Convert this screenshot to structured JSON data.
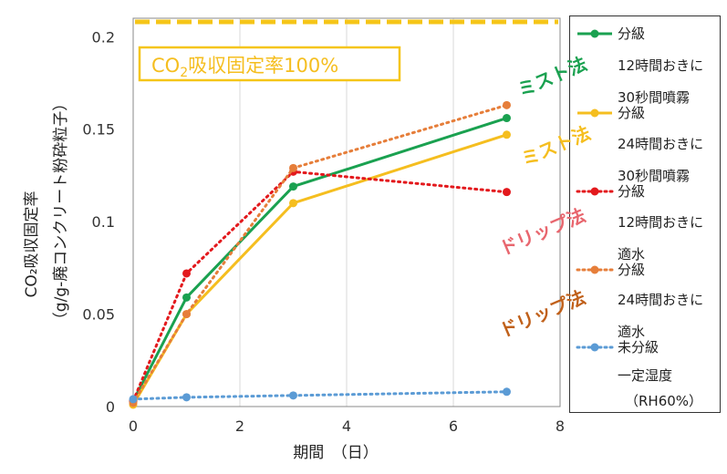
{
  "chart_data": {
    "type": "line",
    "xlabel": "期間　（日）",
    "ylabel_line1": "CO₂吸収固定率",
    "ylabel_line2": "（g/g-廃コンクリート粉砕粒子）",
    "xlim": [
      0,
      8
    ],
    "ylim": [
      0,
      0.21
    ],
    "x_ticks": [
      0,
      2,
      4,
      6,
      8
    ],
    "x_tick_labels": [
      "0",
      "2",
      "4",
      "6",
      "8"
    ],
    "y_ticks": [
      0,
      0.05,
      0.1,
      0.15,
      0.2
    ],
    "y_tick_labels": [
      "0",
      "0.05",
      "0.1",
      "0.15",
      "0.2"
    ],
    "grid": "vertical",
    "reference_line": {
      "y": 0.208,
      "label_pre": "CO",
      "label_sub": "2",
      "label_post": "吸収固定率100%",
      "color": "#F5C518"
    },
    "series": [
      {
        "name": "分級",
        "desc": [
          "12時間おきに",
          "30秒間噴霧"
        ],
        "color": "#1AA150",
        "style": "solid",
        "x": [
          0,
          1,
          3,
          7
        ],
        "y": [
          0.003,
          0.059,
          0.119,
          0.156
        ]
      },
      {
        "name": "分級",
        "desc": [
          "24時間おきに",
          "30秒間噴霧"
        ],
        "color": "#F5BE1F",
        "style": "solid",
        "x": [
          0,
          1,
          3,
          7
        ],
        "y": [
          0.001,
          0.05,
          0.11,
          0.147
        ]
      },
      {
        "name": "分級",
        "desc": [
          "12時間おきに",
          "適水"
        ],
        "color": "#E3191D",
        "style": "dotted",
        "x": [
          0,
          1,
          3,
          7
        ],
        "y": [
          0.003,
          0.072,
          0.127,
          0.116
        ]
      },
      {
        "name": "分級",
        "desc": [
          "24時間おきに",
          "適水"
        ],
        "color": "#E67E3A",
        "style": "dotted",
        "x": [
          0,
          1,
          3,
          7
        ],
        "y": [
          0.002,
          0.05,
          0.129,
          0.163
        ]
      },
      {
        "name": "未分級",
        "desc": [
          "一定湿度",
          "（RH60%）"
        ],
        "color": "#5B9BD5",
        "style": "dotted",
        "x": [
          0,
          1,
          3,
          7
        ],
        "y": [
          0.004,
          0.005,
          0.006,
          0.008
        ]
      }
    ],
    "annotations": [
      {
        "text": "ミスト法",
        "color": "#1AA150"
      },
      {
        "text": "ミスト法",
        "color": "#F5BE1F"
      },
      {
        "text": "ドリップ法",
        "color": "#E8666E"
      },
      {
        "text": "ドリップ法",
        "color": "#C0601A"
      }
    ]
  }
}
